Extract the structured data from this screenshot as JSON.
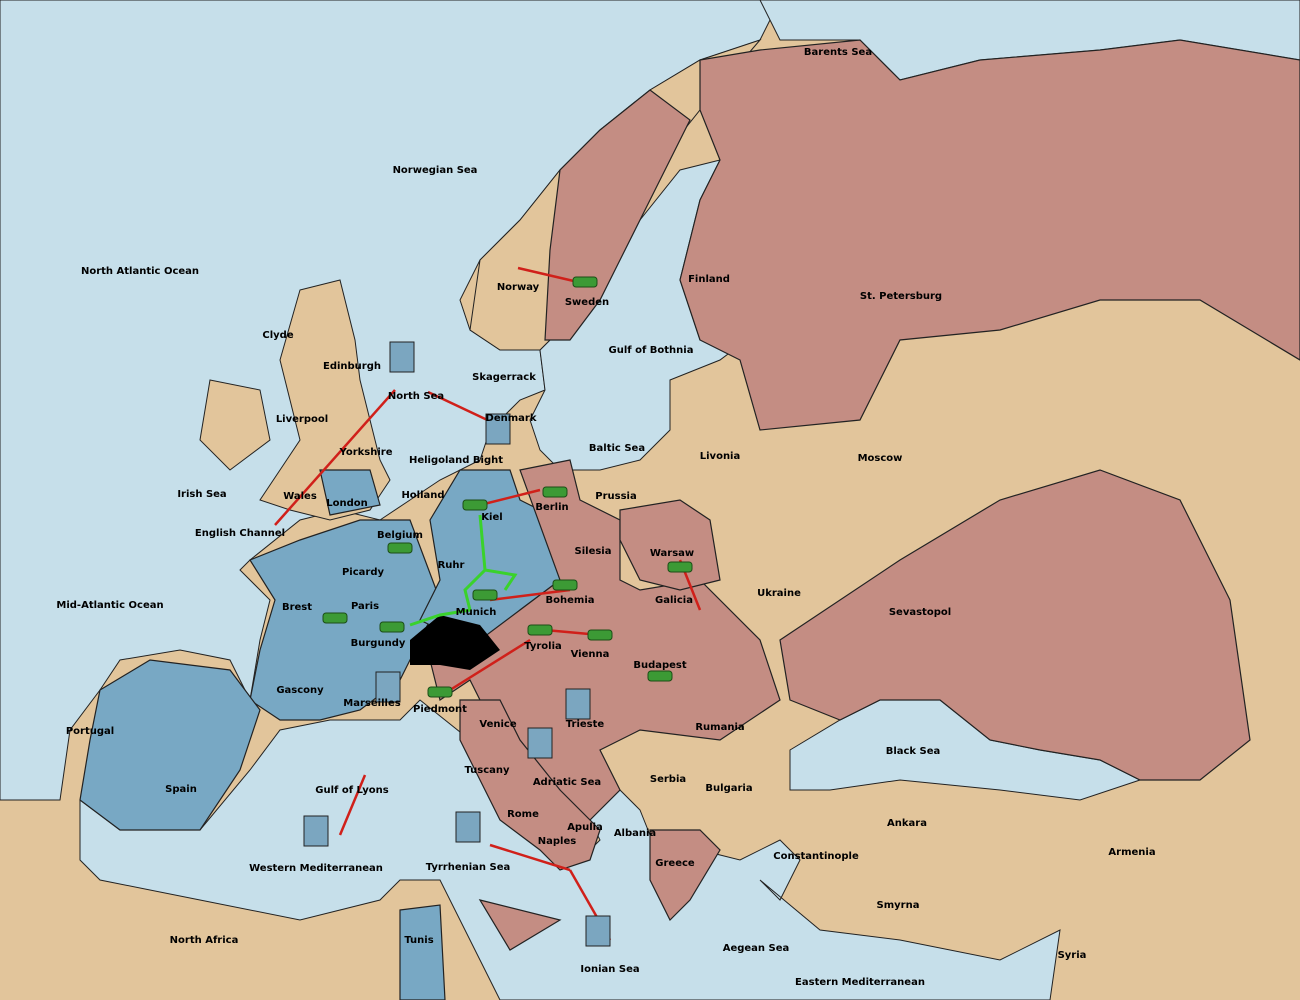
{
  "regions": [
    {
      "name": "Barents Sea"
    },
    {
      "name": "Norwegian Sea"
    },
    {
      "name": "North Atlantic Ocean"
    },
    {
      "name": "Norway"
    },
    {
      "name": "Sweden"
    },
    {
      "name": "Finland"
    },
    {
      "name": "St. Petersburg"
    },
    {
      "name": "Gulf of Bothnia"
    },
    {
      "name": "Clyde"
    },
    {
      "name": "Edinburgh"
    },
    {
      "name": "North Sea"
    },
    {
      "name": "Skagerrack"
    },
    {
      "name": "Liverpool"
    },
    {
      "name": "Denmark"
    },
    {
      "name": "Baltic Sea"
    },
    {
      "name": "Livonia"
    },
    {
      "name": "Moscow"
    },
    {
      "name": "Yorkshire"
    },
    {
      "name": "Heligoland Bight"
    },
    {
      "name": "Irish Sea"
    },
    {
      "name": "Wales"
    },
    {
      "name": "London"
    },
    {
      "name": "Holland"
    },
    {
      "name": "Prussia"
    },
    {
      "name": "Berlin"
    },
    {
      "name": "Kiel"
    },
    {
      "name": "English Channel"
    },
    {
      "name": "Belgium"
    },
    {
      "name": "Silesia"
    },
    {
      "name": "Warsaw"
    },
    {
      "name": "Ruhr"
    },
    {
      "name": "Picardy"
    },
    {
      "name": "Ukraine"
    },
    {
      "name": "Mid-Atlantic Ocean"
    },
    {
      "name": "Brest"
    },
    {
      "name": "Paris"
    },
    {
      "name": "Bohemia"
    },
    {
      "name": "Galicia"
    },
    {
      "name": "Munich"
    },
    {
      "name": "Sevastopol"
    },
    {
      "name": "Burgundy"
    },
    {
      "name": "Tyrolia"
    },
    {
      "name": "Vienna"
    },
    {
      "name": "Budapest"
    },
    {
      "name": "Gascony"
    },
    {
      "name": "Marseilles"
    },
    {
      "name": "Piedmont"
    },
    {
      "name": "Trieste"
    },
    {
      "name": "Rumania"
    },
    {
      "name": "Portugal"
    },
    {
      "name": "Venice"
    },
    {
      "name": "Black Sea"
    },
    {
      "name": "Spain"
    },
    {
      "name": "Gulf of Lyons"
    },
    {
      "name": "Tuscany"
    },
    {
      "name": "Adriatic Sea"
    },
    {
      "name": "Serbia"
    },
    {
      "name": "Bulgaria"
    },
    {
      "name": "Rome"
    },
    {
      "name": "Apulia"
    },
    {
      "name": "Albania"
    },
    {
      "name": "Ankara"
    },
    {
      "name": "Naples"
    },
    {
      "name": "Armenia"
    },
    {
      "name": "Constantinople"
    },
    {
      "name": "Greece"
    },
    {
      "name": "Western Mediterranean"
    },
    {
      "name": "Tyrrhenian Sea"
    },
    {
      "name": "Smyrna"
    },
    {
      "name": "North Africa"
    },
    {
      "name": "Tunis"
    },
    {
      "name": "Aegean Sea"
    },
    {
      "name": "Ionian Sea"
    },
    {
      "name": "Syria"
    },
    {
      "name": "Eastern Mediterranean"
    }
  ]
}
